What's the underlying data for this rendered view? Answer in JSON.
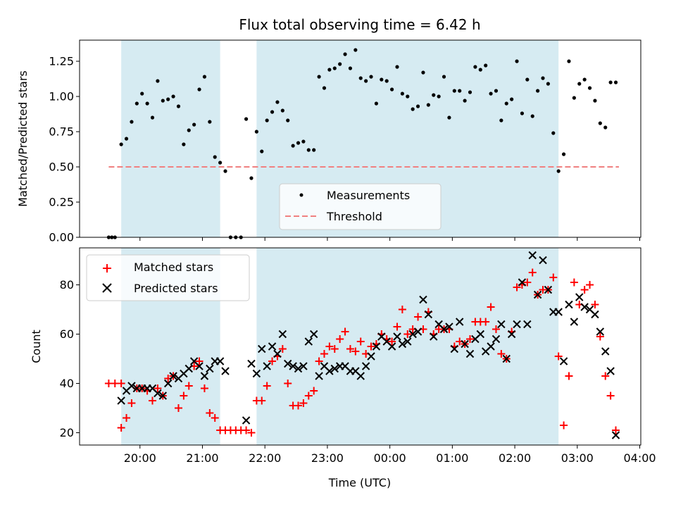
{
  "figure": {
    "title": "Flux total observing time = 6.42 h",
    "xlabel": "Time (UTC)",
    "x_tick_labels": [
      "20:00",
      "21:00",
      "22:00",
      "23:00",
      "00:00",
      "01:00",
      "02:00",
      "03:00",
      "04:00"
    ],
    "colors": {
      "shade": "#add8e6",
      "threshold": "#f08080",
      "matched": "#ff0000",
      "predicted": "#000000",
      "measurements": "#000000"
    }
  },
  "chart_data": [
    {
      "type": "scatter",
      "ylabel": "Matched/Predicted stars",
      "ylim": [
        0,
        1.4
      ],
      "y_ticks": [
        0.0,
        0.25,
        0.5,
        0.75,
        1.0,
        1.25
      ],
      "y_tick_labels": [
        "0.00",
        "0.25",
        "0.50",
        "0.75",
        "1.00",
        "1.25"
      ],
      "shaded_intervals": [
        [
          "19:42",
          "21:17"
        ],
        [
          "21:52",
          "02:42"
        ]
      ],
      "legend": {
        "placement": "lower center",
        "entries": [
          "Measurements",
          "Threshold"
        ]
      },
      "threshold": {
        "name": "Threshold",
        "value": 0.5,
        "x_range": [
          "19:30",
          "03:40"
        ]
      },
      "series": [
        {
          "name": "Measurements",
          "x": [
            "19:30",
            "19:33",
            "19:36",
            "19:42",
            "19:47",
            "19:52",
            "19:57",
            "20:02",
            "20:07",
            "20:12",
            "20:17",
            "20:22",
            "20:27",
            "20:32",
            "20:37",
            "20:42",
            "20:47",
            "20:52",
            "20:57",
            "21:02",
            "21:07",
            "21:12",
            "21:17",
            "21:22",
            "21:27",
            "21:32",
            "21:37",
            "21:42",
            "21:47",
            "21:52",
            "21:57",
            "22:02",
            "22:07",
            "22:12",
            "22:17",
            "22:22",
            "22:27",
            "22:32",
            "22:37",
            "22:42",
            "22:47",
            "22:52",
            "22:57",
            "23:02",
            "23:07",
            "23:12",
            "23:17",
            "23:22",
            "23:27",
            "23:32",
            "23:37",
            "23:42",
            "23:47",
            "23:52",
            "23:57",
            "00:02",
            "00:07",
            "00:12",
            "00:17",
            "00:22",
            "00:27",
            "00:32",
            "00:37",
            "00:42",
            "00:47",
            "00:52",
            "00:57",
            "01:02",
            "01:07",
            "01:12",
            "01:17",
            "01:22",
            "01:27",
            "01:32",
            "01:37",
            "01:42",
            "01:47",
            "01:52",
            "01:57",
            "02:02",
            "02:07",
            "02:12",
            "02:17",
            "02:22",
            "02:27",
            "02:32",
            "02:37",
            "02:42",
            "02:47",
            "02:52",
            "02:57",
            "03:02",
            "03:07",
            "03:12",
            "03:17",
            "03:22",
            "03:27",
            "03:32",
            "03:37"
          ],
          "y": [
            0.0,
            0.0,
            0.0,
            0.66,
            0.7,
            0.82,
            0.95,
            1.02,
            0.95,
            0.85,
            1.11,
            0.97,
            0.98,
            1.0,
            0.93,
            0.66,
            0.76,
            0.8,
            1.05,
            1.14,
            0.82,
            0.57,
            0.53,
            0.47,
            0.0,
            0.0,
            0.0,
            0.84,
            0.42,
            0.75,
            0.61,
            0.83,
            0.89,
            0.96,
            0.9,
            0.83,
            0.65,
            0.67,
            0.68,
            0.62,
            0.62,
            1.14,
            1.06,
            1.19,
            1.2,
            1.23,
            1.3,
            1.2,
            1.33,
            1.13,
            1.11,
            1.14,
            0.95,
            1.12,
            1.11,
            1.05,
            1.21,
            1.02,
            1.0,
            0.91,
            0.93,
            1.17,
            0.94,
            1.01,
            1.0,
            1.14,
            0.85,
            1.04,
            1.04,
            0.97,
            1.03,
            1.21,
            1.19,
            1.22,
            1.02,
            1.04,
            0.83,
            0.95,
            0.98,
            1.25,
            0.88,
            1.12,
            0.86,
            1.04,
            1.13,
            1.09,
            0.74,
            0.47,
            0.59,
            1.25,
            0.99,
            1.09,
            1.12,
            1.06,
            0.97,
            0.81,
            0.78,
            1.1,
            1.1
          ]
        }
      ]
    },
    {
      "type": "scatter",
      "ylabel": "Count",
      "ylim": [
        15,
        95
      ],
      "y_ticks": [
        20,
        40,
        60,
        80
      ],
      "y_tick_labels": [
        "20",
        "40",
        "60",
        "80"
      ],
      "shaded_intervals": [
        [
          "19:42",
          "21:17"
        ],
        [
          "21:52",
          "02:42"
        ]
      ],
      "legend": {
        "placement": "upper left",
        "entries": [
          "Matched stars",
          "Predicted stars"
        ]
      },
      "series": [
        {
          "name": "Matched stars",
          "x": [
            "19:30",
            "19:36",
            "19:42",
            "19:42",
            "19:47",
            "19:52",
            "19:57",
            "20:02",
            "20:07",
            "20:12",
            "20:17",
            "20:22",
            "20:27",
            "20:32",
            "20:37",
            "20:42",
            "20:47",
            "20:52",
            "20:57",
            "21:02",
            "21:07",
            "21:12",
            "21:17",
            "21:22",
            "21:27",
            "21:32",
            "21:37",
            "21:42",
            "21:47",
            "21:52",
            "21:57",
            "22:02",
            "22:07",
            "22:12",
            "22:17",
            "22:22",
            "22:27",
            "22:32",
            "22:37",
            "22:42",
            "22:47",
            "22:52",
            "22:57",
            "23:02",
            "23:07",
            "23:12",
            "23:17",
            "23:22",
            "23:27",
            "23:32",
            "23:37",
            "23:42",
            "23:47",
            "23:52",
            "23:57",
            "00:02",
            "00:07",
            "00:12",
            "00:17",
            "00:22",
            "00:27",
            "00:32",
            "00:37",
            "00:42",
            "00:47",
            "00:52",
            "00:57",
            "01:02",
            "01:07",
            "01:12",
            "01:17",
            "01:22",
            "01:27",
            "01:32",
            "01:37",
            "01:42",
            "01:47",
            "01:52",
            "01:57",
            "02:02",
            "02:07",
            "02:12",
            "02:17",
            "02:22",
            "02:27",
            "02:32",
            "02:37",
            "02:42",
            "02:47",
            "02:52",
            "02:57",
            "03:02",
            "03:07",
            "03:12",
            "03:17",
            "03:22",
            "03:27",
            "03:32",
            "03:37"
          ],
          "y": [
            40,
            40,
            40,
            22,
            26,
            32,
            38,
            38,
            37,
            33,
            38,
            35,
            42,
            43,
            30,
            35,
            39,
            47,
            49,
            38,
            28,
            26,
            21,
            21,
            21,
            21,
            21,
            21,
            20,
            33,
            33,
            39,
            49,
            51,
            54,
            40,
            31,
            31,
            32,
            35,
            37,
            49,
            52,
            55,
            54,
            58,
            61,
            54,
            53,
            57,
            52,
            55,
            56,
            60,
            58,
            57,
            63,
            70,
            60,
            62,
            67,
            62,
            69,
            60,
            62,
            62,
            62,
            55,
            57,
            56,
            58,
            65,
            65,
            65,
            71,
            62,
            52,
            50,
            61,
            79,
            80,
            81,
            85,
            76,
            78,
            78,
            83,
            51,
            23,
            43,
            81,
            72,
            78,
            80,
            72,
            59,
            43,
            35,
            21
          ]
        },
        {
          "name": "Predicted stars",
          "x": [
            "19:42",
            "19:47",
            "19:52",
            "19:57",
            "20:02",
            "20:07",
            "20:12",
            "20:17",
            "20:22",
            "20:27",
            "20:32",
            "20:37",
            "20:42",
            "20:47",
            "20:52",
            "20:57",
            "21:02",
            "21:07",
            "21:12",
            "21:17",
            "21:22",
            "21:42",
            "21:47",
            "21:52",
            "21:57",
            "22:02",
            "22:07",
            "22:12",
            "22:17",
            "22:22",
            "22:27",
            "22:32",
            "22:37",
            "22:42",
            "22:47",
            "22:52",
            "22:57",
            "23:02",
            "23:07",
            "23:12",
            "23:17",
            "23:22",
            "23:27",
            "23:32",
            "23:37",
            "23:42",
            "23:47",
            "23:52",
            "23:57",
            "00:02",
            "00:07",
            "00:12",
            "00:17",
            "00:22",
            "00:27",
            "00:32",
            "00:37",
            "00:42",
            "00:47",
            "00:52",
            "00:57",
            "01:02",
            "01:07",
            "01:12",
            "01:17",
            "01:22",
            "01:27",
            "01:32",
            "01:37",
            "01:42",
            "01:47",
            "01:52",
            "01:57",
            "02:02",
            "02:07",
            "02:12",
            "02:17",
            "02:22",
            "02:27",
            "02:32",
            "02:37",
            "02:42",
            "02:47",
            "02:52",
            "02:57",
            "03:02",
            "03:07",
            "03:12",
            "03:17",
            "03:22",
            "03:27",
            "03:32",
            "03:37"
          ],
          "y": [
            33,
            37,
            39,
            38,
            38,
            38,
            38,
            36,
            35,
            40,
            43,
            42,
            44,
            46,
            49,
            47,
            43,
            46,
            49,
            49,
            45,
            25,
            48,
            44,
            54,
            47,
            55,
            52,
            60,
            48,
            47,
            46,
            47,
            57,
            60,
            43,
            47,
            45,
            46,
            47,
            47,
            45,
            45,
            43,
            47,
            51,
            55,
            59,
            57,
            55,
            59,
            56,
            57,
            60,
            61,
            74,
            68,
            59,
            64,
            62,
            63,
            54,
            65,
            56,
            52,
            58,
            60,
            53,
            55,
            58,
            64,
            50,
            60,
            64,
            81,
            64,
            92,
            76,
            90,
            78,
            69,
            69,
            49,
            72,
            65,
            75,
            71,
            70,
            68,
            61,
            53,
            45,
            19
          ]
        }
      ]
    }
  ]
}
